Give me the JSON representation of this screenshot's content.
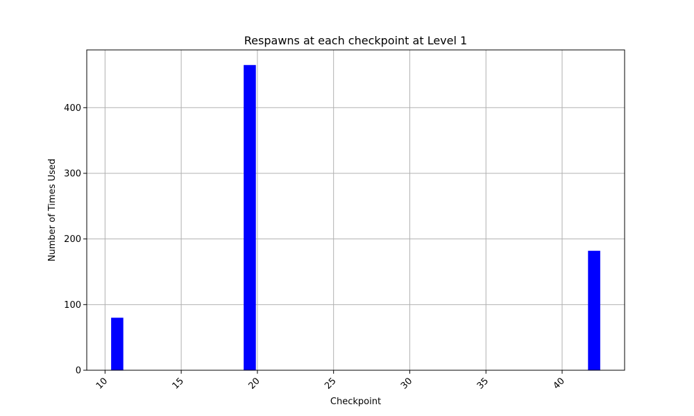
{
  "chart_data": {
    "type": "bar",
    "title": "Respawns at each checkpoint at Level 1",
    "xlabel": "Checkpoint",
    "ylabel": "Number of Times Used",
    "x": [
      10.8,
      19.5,
      42.1
    ],
    "values": [
      80,
      465,
      182
    ],
    "bar_width_data": 0.8,
    "bar_color": "#0000ff",
    "xlim": [
      8.8,
      44.1
    ],
    "ylim": [
      0,
      488
    ],
    "xticks": [
      10,
      15,
      20,
      25,
      30,
      35,
      40
    ],
    "yticks": [
      0,
      100,
      200,
      300,
      400
    ],
    "xtick_labels": [
      "10",
      "15",
      "20",
      "25",
      "30",
      "35",
      "40"
    ],
    "ytick_labels": [
      "0",
      "100",
      "200",
      "300",
      "400"
    ],
    "xtick_rotation": 45,
    "grid": true,
    "grid_color": "#b0b0b0"
  }
}
